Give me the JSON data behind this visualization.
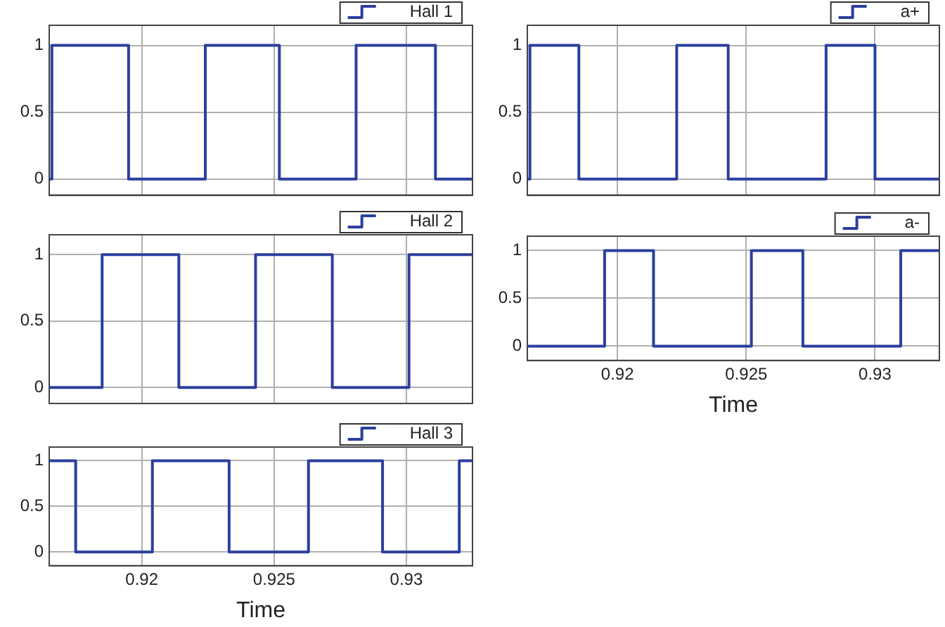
{
  "chart_data": [
    {
      "type": "step",
      "x": [
        0.9165,
        0.9166,
        0.9195,
        0.9224,
        0.9252,
        0.9281,
        0.9311,
        0.9325
      ],
      "series": [
        {
          "name": "Hall 1",
          "color": "#2b3f9e",
          "values": [
            0,
            1,
            0,
            1,
            0,
            1,
            0,
            0
          ]
        }
      ],
      "xlim": [
        0.9165,
        0.9325
      ],
      "xticks": [
        0.92,
        0.925,
        0.93
      ],
      "ylim": [
        -0.12,
        1.15
      ],
      "yticks": [
        0,
        0.5,
        1
      ],
      "grid": true,
      "legend": "top right",
      "tick_labels": "y"
    },
    {
      "type": "step",
      "x": [
        0.9165,
        0.9185,
        0.9214,
        0.9243,
        0.9272,
        0.9301,
        0.9325
      ],
      "series": [
        {
          "name": "Hall 2",
          "color": "#2b3f9e",
          "values": [
            0,
            1,
            0,
            1,
            0,
            1,
            1
          ]
        }
      ],
      "xlim": [
        0.9165,
        0.9325
      ],
      "xticks": [
        0.92,
        0.925,
        0.93
      ],
      "ylim": [
        -0.12,
        1.15
      ],
      "yticks": [
        0,
        0.5,
        1
      ],
      "grid": true,
      "legend": "top right",
      "tick_labels": "y"
    },
    {
      "type": "step",
      "x": [
        0.9165,
        0.9175,
        0.9204,
        0.9233,
        0.9263,
        0.9291,
        0.932,
        0.9325
      ],
      "series": [
        {
          "name": "Hall 3",
          "color": "#2b3f9e",
          "values": [
            1,
            0,
            1,
            0,
            1,
            0,
            1,
            1
          ]
        }
      ],
      "xlim": [
        0.9165,
        0.9325
      ],
      "xticks": [
        0.92,
        0.925,
        0.93
      ],
      "ylim": [
        -0.15,
        1.15
      ],
      "yticks": [
        0,
        0.5,
        1
      ],
      "grid": true,
      "legend": "top right",
      "xlabel": "Time"
    },
    {
      "type": "step",
      "x": [
        0.9165,
        0.9166,
        0.9185,
        0.9223,
        0.9243,
        0.9281,
        0.93,
        0.9325
      ],
      "series": [
        {
          "name": "a+",
          "color": "#2b3f9e",
          "values": [
            0,
            1,
            0,
            1,
            0,
            1,
            0,
            0
          ]
        }
      ],
      "xlim": [
        0.9165,
        0.9325
      ],
      "xticks": [
        0.92,
        0.925,
        0.93
      ],
      "ylim": [
        -0.12,
        1.15
      ],
      "yticks": [
        0,
        0.5,
        1
      ],
      "grid": true,
      "legend": "top right",
      "tick_labels": "y"
    },
    {
      "type": "step",
      "x": [
        0.9165,
        0.9195,
        0.9214,
        0.9252,
        0.9272,
        0.931,
        0.9325
      ],
      "series": [
        {
          "name": "a-",
          "color": "#2b3f9e",
          "values": [
            0,
            1,
            0,
            1,
            0,
            1,
            1
          ]
        }
      ],
      "xlim": [
        0.9165,
        0.9325
      ],
      "xticks": [
        0.92,
        0.925,
        0.93
      ],
      "ylim": [
        -0.15,
        1.15
      ],
      "yticks": [
        0,
        0.5,
        1
      ],
      "grid": true,
      "legend": "top right",
      "xlabel": "Time"
    }
  ]
}
